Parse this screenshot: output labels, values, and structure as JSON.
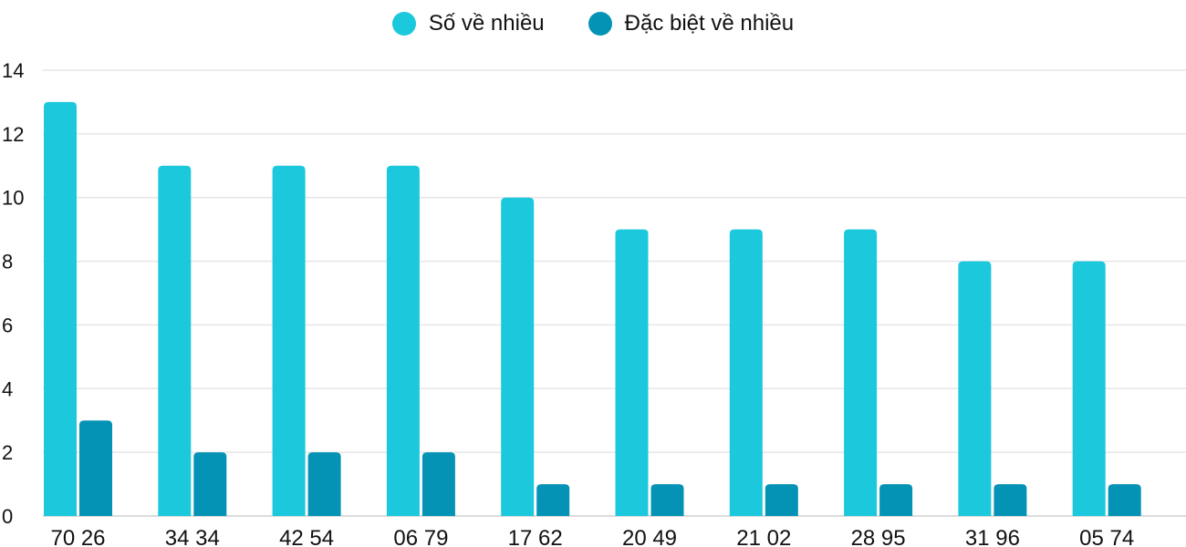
{
  "chart_data": {
    "type": "bar",
    "title": "",
    "xlabel": "",
    "ylabel": "",
    "ylim": [
      0,
      14
    ],
    "yticks": [
      0,
      2,
      4,
      6,
      8,
      10,
      12,
      14
    ],
    "grid": true,
    "legend_position": "top-center",
    "categories": [
      "70 26",
      "34 34",
      "42 54",
      "06 79",
      "17 62",
      "20 49",
      "21 02",
      "28 95",
      "31 96",
      "05 74"
    ],
    "series": [
      {
        "name": "Số về nhiều",
        "color": "#1bc8dc",
        "values": [
          13,
          11,
          11,
          11,
          10,
          9,
          9,
          9,
          8,
          8
        ]
      },
      {
        "name": "Đặc biệt về nhiều",
        "color": "#0593b5",
        "values": [
          3,
          2,
          2,
          2,
          1,
          1,
          1,
          1,
          1,
          1
        ]
      }
    ]
  }
}
